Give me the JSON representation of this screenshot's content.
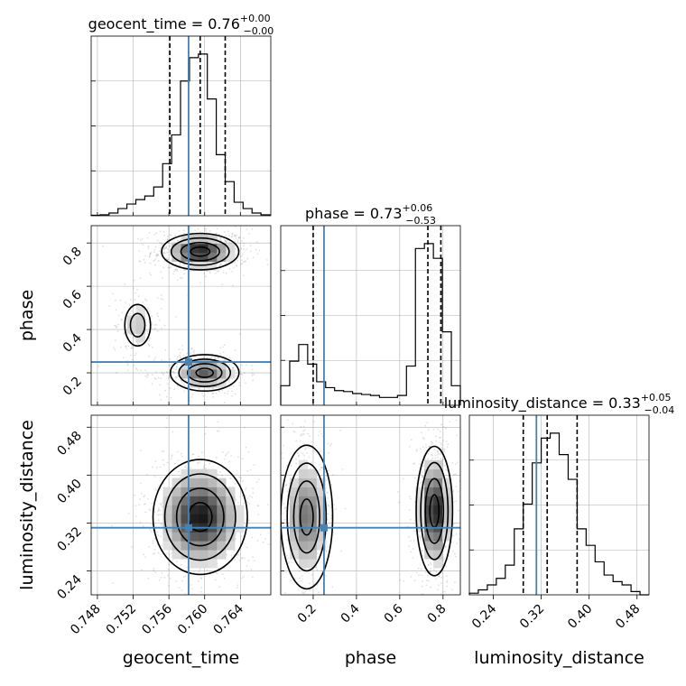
{
  "chart_data": {
    "type": "corner",
    "parameters": [
      {
        "name": "geocent_time",
        "title": "geocent_time = 0.76",
        "title_sup": "+0.00",
        "title_sub": "−0.00",
        "range": [
          0.7473,
          0.7674
        ],
        "ticks": [
          0.748,
          0.752,
          0.756,
          0.76,
          0.764
        ],
        "tick_labels": [
          "0.748",
          "0.752",
          "0.756",
          "0.760",
          "0.764"
        ],
        "truth": 0.7582,
        "quantiles": [
          0.7561,
          0.7595,
          0.7623
        ]
      },
      {
        "name": "phase",
        "title": "phase = 0.73",
        "title_sup": "+0.06",
        "title_sub": "−0.53",
        "range": [
          0.05,
          0.88
        ],
        "ticks": [
          0.2,
          0.4,
          0.6,
          0.8
        ],
        "tick_labels": [
          "0.2",
          "0.4",
          "0.6",
          "0.8"
        ],
        "truth": 0.25,
        "quantiles": [
          0.2,
          0.73,
          0.79
        ]
      },
      {
        "name": "luminosity_distance",
        "title": "luminosity_distance = 0.33",
        "title_sup": "+0.05",
        "title_sub": "−0.04",
        "range": [
          0.2,
          0.5
        ],
        "ticks": [
          0.24,
          0.32,
          0.4,
          0.48
        ],
        "tick_labels": [
          "0.24",
          "0.32",
          "0.40",
          "0.48"
        ],
        "truth": 0.312,
        "quantiles": [
          0.29,
          0.33,
          0.38
        ]
      }
    ],
    "histograms": [
      {
        "param": "geocent_time",
        "bin_edges": [
          0.7473,
          0.7483,
          0.7493,
          0.7503,
          0.7513,
          0.7523,
          0.7533,
          0.7543,
          0.7553,
          0.7563,
          0.7573,
          0.7583,
          0.7593,
          0.7603,
          0.7613,
          0.7623,
          0.7633,
          0.7643,
          0.7653,
          0.7663,
          0.7673
        ],
        "counts": [
          0.5,
          1,
          3,
          8,
          13,
          18,
          22,
          32,
          58,
          90,
          150,
          176,
          180,
          130,
          68,
          38,
          15,
          8,
          3,
          1
        ]
      },
      {
        "param": "phase",
        "bin_edges": [
          0.05,
          0.0915,
          0.133,
          0.1745,
          0.216,
          0.2575,
          0.299,
          0.3405,
          0.382,
          0.4235,
          0.465,
          0.5065,
          0.548,
          0.5895,
          0.631,
          0.6725,
          0.714,
          0.7555,
          0.797,
          0.8385,
          0.88
        ],
        "counts": [
          20,
          45,
          62,
          42,
          24,
          18,
          15,
          14,
          12,
          11,
          10,
          8,
          8,
          10,
          40,
          160,
          165,
          150,
          75,
          20
        ]
      },
      {
        "param": "luminosity_distance",
        "bin_edges": [
          0.2,
          0.215,
          0.23,
          0.245,
          0.26,
          0.275,
          0.29,
          0.305,
          0.32,
          0.335,
          0.35,
          0.365,
          0.38,
          0.395,
          0.41,
          0.425,
          0.44,
          0.455,
          0.47,
          0.485,
          0.5
        ],
        "counts": [
          1,
          3,
          6,
          10,
          18,
          40,
          55,
          80,
          95,
          98,
          85,
          70,
          40,
          30,
          20,
          12,
          8,
          6,
          2,
          0
        ]
      }
    ],
    "contours_2d": [
      {
        "x": "geocent_time",
        "y": "phase",
        "modes": [
          {
            "center": [
              0.7595,
              0.76
            ],
            "sx": 0.0018,
            "sy": 0.035,
            "weight": 1.0
          },
          {
            "center": [
              0.76,
              0.2
            ],
            "sx": 0.0016,
            "sy": 0.035,
            "weight": 0.7
          },
          {
            "center": [
              0.7525,
              0.42
            ],
            "sx": 0.0009,
            "sy": 0.06,
            "weight": 0.25
          }
        ]
      },
      {
        "x": "geocent_time",
        "y": "luminosity_distance",
        "modes": [
          {
            "center": [
              0.7595,
              0.33
            ],
            "sx": 0.0022,
            "sy": 0.04,
            "weight": 1.0
          }
        ]
      },
      {
        "x": "phase",
        "y": "luminosity_distance",
        "modes": [
          {
            "center": [
              0.76,
              0.34
            ],
            "sx": 0.035,
            "sy": 0.045,
            "weight": 1.0
          },
          {
            "center": [
              0.17,
              0.33
            ],
            "sx": 0.05,
            "sy": 0.05,
            "weight": 0.6
          }
        ]
      }
    ],
    "xlabels": [
      "geocent_time",
      "phase",
      "luminosity_distance"
    ],
    "ylabels": [
      "",
      "phase",
      "luminosity_distance"
    ],
    "colors": {
      "truth": "#4682b4",
      "line": "#000000",
      "grid": "#b0b0b0",
      "points": "#555555"
    },
    "grid": true
  }
}
